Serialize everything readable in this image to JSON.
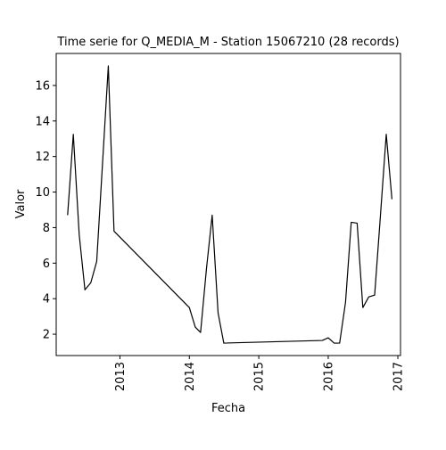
{
  "chart_data": {
    "type": "line",
    "title": "Time serie for Q_MEDIA_M - Station 15067210 (28 records)",
    "xlabel": "Fecha",
    "ylabel": "Valor",
    "x_ticks": [
      "2013",
      "2014",
      "2015",
      "2016",
      "2017"
    ],
    "y_ticks": [
      "2",
      "4",
      "6",
      "8",
      "10",
      "12",
      "14",
      "16"
    ],
    "xlim": [
      "2012-02-01",
      "2017-01-15"
    ],
    "ylim": [
      0.8,
      17.8
    ],
    "grid": false,
    "line_color": "#000000",
    "series": [
      {
        "x": [
          "2012-04-01",
          "2012-05-01",
          "2012-06-01",
          "2012-07-01",
          "2012-08-01",
          "2012-09-01",
          "2012-11-01",
          "2012-12-01",
          "2014-01-01",
          "2014-02-01",
          "2014-03-01",
          "2014-04-01",
          "2014-05-01",
          "2014-06-01",
          "2014-07-01",
          "2015-12-01",
          "2016-01-01",
          "2016-02-01",
          "2016-03-01",
          "2016-04-01",
          "2016-05-01",
          "2016-06-01",
          "2016-07-01",
          "2016-08-01",
          "2016-09-01",
          "2016-10-01",
          "2016-11-01",
          "2016-12-01"
        ],
        "y": [
          8.7,
          13.25,
          7.6,
          4.5,
          4.9,
          6.1,
          17.1,
          7.8,
          3.5,
          2.4,
          2.1,
          5.7,
          8.7,
          3.2,
          1.5,
          1.65,
          1.8,
          1.5,
          1.5,
          3.8,
          8.3,
          8.25,
          3.5,
          4.1,
          4.2,
          8.6,
          13.25,
          9.6
        ]
      }
    ]
  }
}
